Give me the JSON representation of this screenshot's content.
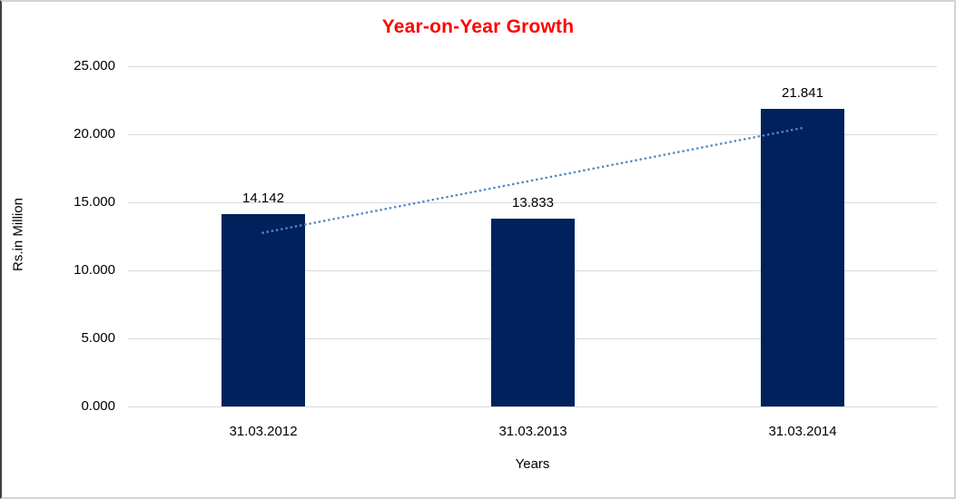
{
  "chart_data": {
    "type": "bar",
    "title": "Year-on-Year Growth",
    "title_color": "#ff0000",
    "categories": [
      "31.03.2012",
      "31.03.2013",
      "31.03.2014"
    ],
    "values": [
      14.142,
      13.833,
      21.841
    ],
    "value_labels": [
      "14.142",
      "13.833",
      "21.841"
    ],
    "xlabel": "Years",
    "ylabel": "Rs.in Million",
    "ylim": [
      0,
      25
    ],
    "ytick_values": [
      0,
      5,
      10,
      15,
      20,
      25
    ],
    "ytick_labels": [
      "0.000",
      "5.000",
      "10.000",
      "15.000",
      "20.000",
      "25.000"
    ],
    "grid": true,
    "gridline_color": "#d9d9d9",
    "bar_color": "#00215c",
    "legend": "none",
    "trendline": {
      "style": "dotted",
      "color": "#5089c8",
      "start_category_index": 0,
      "start_value": 12.76,
      "end_category_index": 2,
      "end_value": 20.46
    }
  }
}
